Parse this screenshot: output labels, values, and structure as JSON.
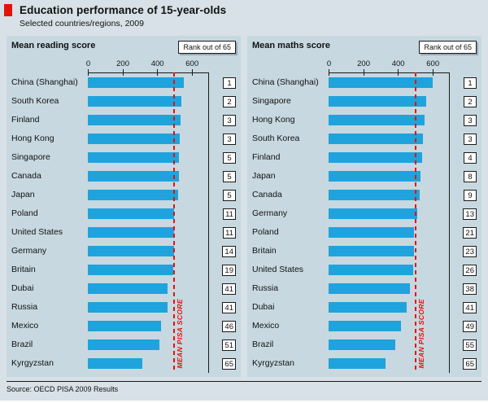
{
  "header": {
    "title": "Education performance of 15-year-olds",
    "subtitle": "Selected countries/regions, 2009"
  },
  "rank_box_label": "Rank out of 65",
  "mean_line_label": "MEAN PISA SCORE",
  "source": "Source: OECD PISA 2009 Results",
  "colors": {
    "bar": "#1FA3DC",
    "mean_line": "#E3120B",
    "accent_red": "#E3120B",
    "page_bg": "#D7E1E7",
    "panel_bg": "#C7D8E0",
    "rank_badge_bg": "#FFFFFF"
  },
  "chart_data": [
    {
      "type": "bar",
      "orientation": "horizontal",
      "title": "Mean reading score",
      "xlabel": "",
      "ylabel": "",
      "xlim": [
        0,
        700
      ],
      "axis_ticks": [
        0,
        200,
        400,
        600
      ],
      "grid": false,
      "legend": "none",
      "mean_line": 493,
      "categories": [
        "China (Shanghai)",
        "South Korea",
        "Finland",
        "Hong Kong",
        "Singapore",
        "Canada",
        "Japan",
        "Poland",
        "United States",
        "Germany",
        "Britain",
        "Dubai",
        "Russia",
        "Mexico",
        "Brazil",
        "Kyrgyzstan"
      ],
      "values": [
        556,
        539,
        536,
        533,
        526,
        524,
        520,
        500,
        500,
        497,
        494,
        459,
        459,
        425,
        412,
        314
      ],
      "ranks": [
        1,
        2,
        3,
        3,
        5,
        5,
        5,
        11,
        11,
        14,
        19,
        41,
        41,
        46,
        51,
        65
      ]
    },
    {
      "type": "bar",
      "orientation": "horizontal",
      "title": "Mean maths score",
      "xlabel": "",
      "ylabel": "",
      "xlim": [
        0,
        700
      ],
      "axis_ticks": [
        0,
        200,
        400,
        600
      ],
      "grid": false,
      "legend": "none",
      "mean_line": 496,
      "categories": [
        "China (Shanghai)",
        "Singapore",
        "Hong Kong",
        "South Korea",
        "Finland",
        "Japan",
        "Canada",
        "Germany",
        "Poland",
        "Britain",
        "United States",
        "Russia",
        "Dubai",
        "Mexico",
        "Brazil",
        "Kyrgyzstan"
      ],
      "values": [
        600,
        562,
        555,
        546,
        541,
        529,
        527,
        513,
        495,
        492,
        487,
        468,
        453,
        419,
        386,
        331
      ],
      "ranks": [
        1,
        2,
        3,
        3,
        4,
        8,
        9,
        13,
        21,
        23,
        26,
        38,
        41,
        49,
        55,
        65
      ]
    }
  ]
}
